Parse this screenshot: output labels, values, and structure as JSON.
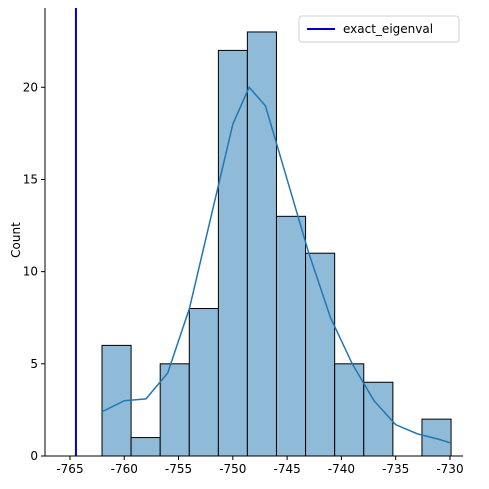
{
  "chart_data": {
    "type": "histogram",
    "ylabel": "Count",
    "bins": [
      -762.05,
      -759.37,
      -756.69,
      -754.01,
      -751.33,
      -748.66,
      -745.98,
      -743.3,
      -740.62,
      -737.94,
      -735.26,
      -732.58,
      -729.9
    ],
    "counts": [
      6,
      1,
      5,
      8,
      22,
      23,
      13,
      11,
      5,
      4,
      0,
      2
    ],
    "color": "#8fbbd9",
    "edgecolor": "#000000",
    "kde": {
      "color": "#1f77b4",
      "x": [
        -762.05,
        -760,
        -758,
        -756,
        -754,
        -752,
        -750,
        -748.5,
        -747,
        -745,
        -743,
        -741,
        -739,
        -737,
        -735,
        -733,
        -731,
        -729.9
      ],
      "y": [
        2.4,
        3.0,
        3.1,
        4.5,
        8,
        13,
        18,
        20,
        19,
        15,
        11,
        7.5,
        5,
        3,
        1.7,
        1.2,
        0.9,
        0.7
      ]
    },
    "vline": {
      "name": "exact_eigenval",
      "x": -764.45,
      "color": "#0000cd"
    },
    "legend": "upper right",
    "xlim": [
      -767.3,
      -728.8
    ],
    "ylim": [
      0,
      24.3
    ],
    "xticks": [
      -765,
      -760,
      -755,
      -750,
      -745,
      -740,
      -735,
      -730
    ],
    "yticks": [
      0,
      5,
      10,
      15,
      20
    ]
  }
}
